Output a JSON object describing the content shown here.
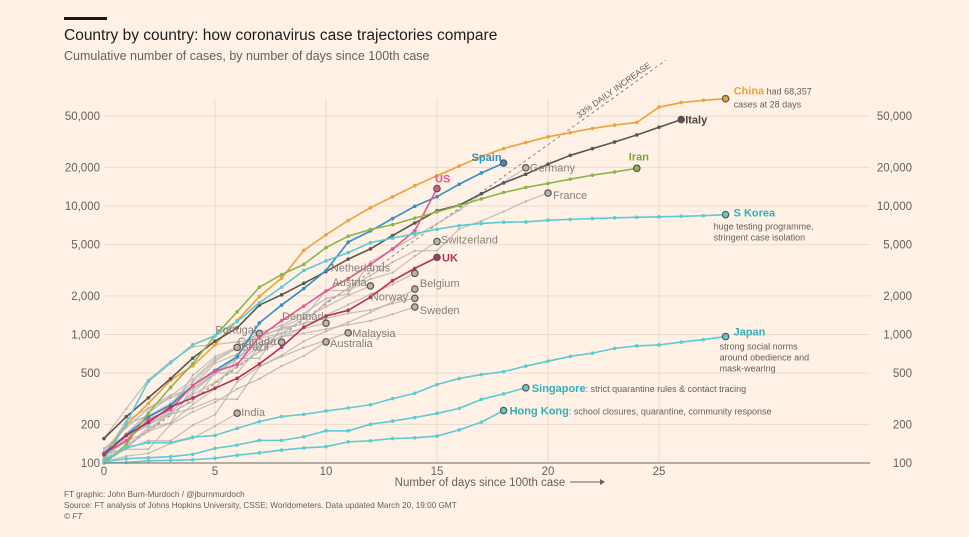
{
  "header": {
    "title": "Country by country: how coronavirus case trajectories compare",
    "subtitle": "Cumulative number of cases, by number of days since 100th case"
  },
  "footer": {
    "credit": "FT graphic: John Burn-Murdoch / @jburnmurdoch",
    "source": "Source: FT analysis of Johns Hopkins University, CSSE; Worldometers. Data updated March 20, 19:00 GMT",
    "copyright": "© FT"
  },
  "chart_data": {
    "type": "line",
    "title": "Country by country: how coronavirus case trajectories compare",
    "subtitle": "Cumulative number of cases, by number of days since 100th case",
    "xlabel": "Number of days since 100th case",
    "ylabel": "",
    "yscale": "log",
    "xlim": [
      0,
      33
    ],
    "ylim": [
      100,
      80000
    ],
    "xticks": [
      0,
      5,
      10,
      15,
      20,
      25
    ],
    "yticks": [
      100,
      200,
      500,
      1000,
      2000,
      5000,
      10000,
      20000,
      50000
    ],
    "ytick_labels": [
      "100",
      "200",
      "500",
      "1,000",
      "2,000",
      "5,000",
      "10,000",
      "20,000",
      "50,000"
    ],
    "grid": true,
    "reference_line": {
      "label": "33% DAILY INCREASE",
      "start": 100,
      "daily_growth": 0.33
    },
    "series": [
      {
        "name": "China",
        "color": "#eda23a",
        "highlight": true,
        "note": "had 68,357 cases at 28 days",
        "values": [
          114,
          198,
          291,
          440,
          571,
          830,
          1287,
          1975,
          2744,
          4515,
          5974,
          7711,
          9692,
          11791,
          14380,
          17205,
          20438,
          24324,
          28018,
          31161,
          34546,
          37198,
          40171,
          42638,
          44653,
          58761,
          63851,
          66492,
          68357
        ]
      },
      {
        "name": "Italy",
        "color": "#5a5552",
        "highlight": true,
        "values": [
          155,
          229,
          322,
          453,
          655,
          888,
          1128,
          1694,
          2036,
          2502,
          3089,
          3858,
          4636,
          5883,
          7375,
          9172,
          10149,
          12462,
          15113,
          17660,
          21157,
          24747,
          27980,
          31506,
          35713,
          41035,
          47021
        ]
      },
      {
        "name": "Spain",
        "color": "#2e8fc9",
        "highlight": true,
        "values": [
          120,
          165,
          228,
          282,
          401,
          525,
          674,
          1231,
          1695,
          2277,
          3146,
          5232,
          6391,
          7988,
          9942,
          11826,
          14769,
          18077,
          21571
        ]
      },
      {
        "name": "US",
        "color": "#e0578f",
        "highlight": true,
        "values": [
          118,
          149,
          217,
          262,
          402,
          518,
          583,
          959,
          1281,
          1663,
          2179,
          2727,
          3499,
          4632,
          6421,
          13677
        ]
      },
      {
        "name": "Iran",
        "color": "#8fb54a",
        "highlight": true,
        "values": [
          95,
          139,
          245,
          388,
          593,
          978,
          1501,
          2336,
          2922,
          3513,
          4747,
          5823,
          6566,
          7161,
          8042,
          9000,
          10075,
          11364,
          12729,
          13938,
          14991,
          16169,
          17361,
          18407,
          19644
        ]
      },
      {
        "name": "S Korea",
        "color": "#5ccbd2",
        "highlight": true,
        "note": "huge testing programme, stringent case isolation",
        "values": [
          104,
          204,
          433,
          602,
          833,
          977,
          1261,
          1766,
          2337,
          3150,
          3736,
          4335,
          5186,
          5621,
          6088,
          6593,
          7041,
          7314,
          7478,
          7513,
          7755,
          7869,
          7979,
          8086,
          8162,
          8236,
          8320,
          8413,
          8565
        ]
      },
      {
        "name": "UK",
        "color": "#b5305a",
        "highlight": true,
        "values": [
          116,
          164,
          207,
          273,
          321,
          382,
          456,
          590,
          798,
          1140,
          1391,
          1543,
          1950,
          2626,
          3269,
          3983
        ]
      },
      {
        "name": "Japan",
        "color": "#5ccbd2",
        "highlight": true,
        "note": "strong social norms around obedience and mask-wearing",
        "values": [
          105,
          132,
          144,
          144,
          159,
          164,
          186,
          210,
          230,
          239,
          254,
          268,
          284,
          317,
          349,
          408,
          455,
          488,
          514,
          568,
          620,
          675,
          716,
          780,
          814,
          829,
          873,
          914,
          963
        ]
      },
      {
        "name": "Singapore",
        "color": "#5ccbd2",
        "highlight": true,
        "note": "strict quarantine rules & contact tracing",
        "values": [
          102,
          108,
          110,
          112,
          117,
          130,
          138,
          150,
          150,
          160,
          178,
          178,
          200,
          212,
          226,
          243,
          266,
          313,
          345,
          385
        ]
      },
      {
        "name": "Hong Kong",
        "color": "#5ccbd2",
        "highlight": true,
        "note": "school closures, quarantine, community response",
        "values": [
          100,
          101,
          104,
          105,
          106,
          109,
          115,
          120,
          126,
          131,
          134,
          146,
          149,
          155,
          157,
          162,
          181,
          208,
          256
        ]
      },
      {
        "name": "Germany",
        "color": "#b9b4b0",
        "highlight": false,
        "values": [
          130,
          159,
          196,
          262,
          482,
          670,
          799,
          1040,
          1176,
          1457,
          1908,
          2078,
          3675,
          4585,
          5795,
          7272,
          9257,
          12327,
          15320,
          19848
        ]
      },
      {
        "name": "France",
        "color": "#b9b4b0",
        "highlight": false,
        "values": [
          100,
          130,
          191,
          204,
          285,
          377,
          653,
          949,
          1126,
          1209,
          1784,
          2281,
          2876,
          3661,
          4469,
          4499,
          6633,
          7652,
          9043,
          10871,
          12612
        ]
      },
      {
        "name": "Switzerland",
        "color": "#b9b4b0",
        "highlight": false,
        "values": [
          114,
          214,
          268,
          337,
          374,
          491,
          652,
          652,
          1139,
          1359,
          2200,
          2200,
          2700,
          3028,
          4075,
          5294
        ]
      },
      {
        "name": "Netherlands",
        "color": "#b9b4b0",
        "highlight": false,
        "values": [
          128,
          188,
          265,
          321,
          382,
          503,
          503,
          804,
          959,
          1135,
          1413,
          1705,
          2051,
          2460,
          2994
        ]
      },
      {
        "name": "Austria",
        "color": "#b9b4b0",
        "highlight": false,
        "values": [
          104,
          131,
          182,
          246,
          302,
          504,
          655,
          860,
          1018,
          1332,
          1646,
          2013,
          2388
        ]
      },
      {
        "name": "Belgium",
        "color": "#b9b4b0",
        "highlight": false,
        "values": [
          109,
          169,
          200,
          239,
          267,
          314,
          314,
          559,
          689,
          886,
          1058,
          1243,
          1486,
          1795,
          2257
        ]
      },
      {
        "name": "Norway",
        "color": "#b9b4b0",
        "highlight": false,
        "values": [
          113,
          147,
          176,
          205,
          400,
          598,
          702,
          996,
          1090,
          1221,
          1333,
          1463,
          1550,
          1746,
          1914
        ]
      },
      {
        "name": "Sweden",
        "color": "#b9b4b0",
        "highlight": false,
        "values": [
          101,
          161,
          203,
          248,
          355,
          500,
          599,
          814,
          961,
          1022,
          1103,
          1190,
          1279,
          1439,
          1639
        ]
      },
      {
        "name": "Denmark",
        "color": "#b9b4b0",
        "highlight": false,
        "values": [
          156,
          264,
          444,
          617,
          804,
          836,
          875,
          933,
          1024,
          1115,
          1225
        ]
      },
      {
        "name": "Malaysia",
        "color": "#b9b4b0",
        "highlight": false,
        "values": [
          117,
          129,
          149,
          149,
          197,
          238,
          428,
          566,
          673,
          790,
          900,
          1030
        ]
      },
      {
        "name": "Australia",
        "color": "#b9b4b0",
        "highlight": false,
        "values": [
          107,
          128,
          128,
          200,
          250,
          297,
          377,
          452,
          568,
          681,
          876
        ]
      },
      {
        "name": "Portugal",
        "color": "#b9b4b0",
        "highlight": false,
        "values": [
          112,
          169,
          245,
          331,
          448,
          642,
          785,
          1020
        ]
      },
      {
        "name": "Canada",
        "color": "#b9b4b0",
        "highlight": false,
        "values": [
          103,
          138,
          176,
          252,
          342,
          424,
          569,
          736,
          873
        ]
      },
      {
        "name": "Brazil",
        "color": "#b9b4b0",
        "highlight": false,
        "values": [
          121,
          200,
          234,
          291,
          428,
          621,
          793
        ]
      },
      {
        "name": "India",
        "color": "#b9b4b0",
        "highlight": false,
        "values": [
          102,
          113,
          119,
          142,
          156,
          194,
          244
        ]
      }
    ]
  }
}
